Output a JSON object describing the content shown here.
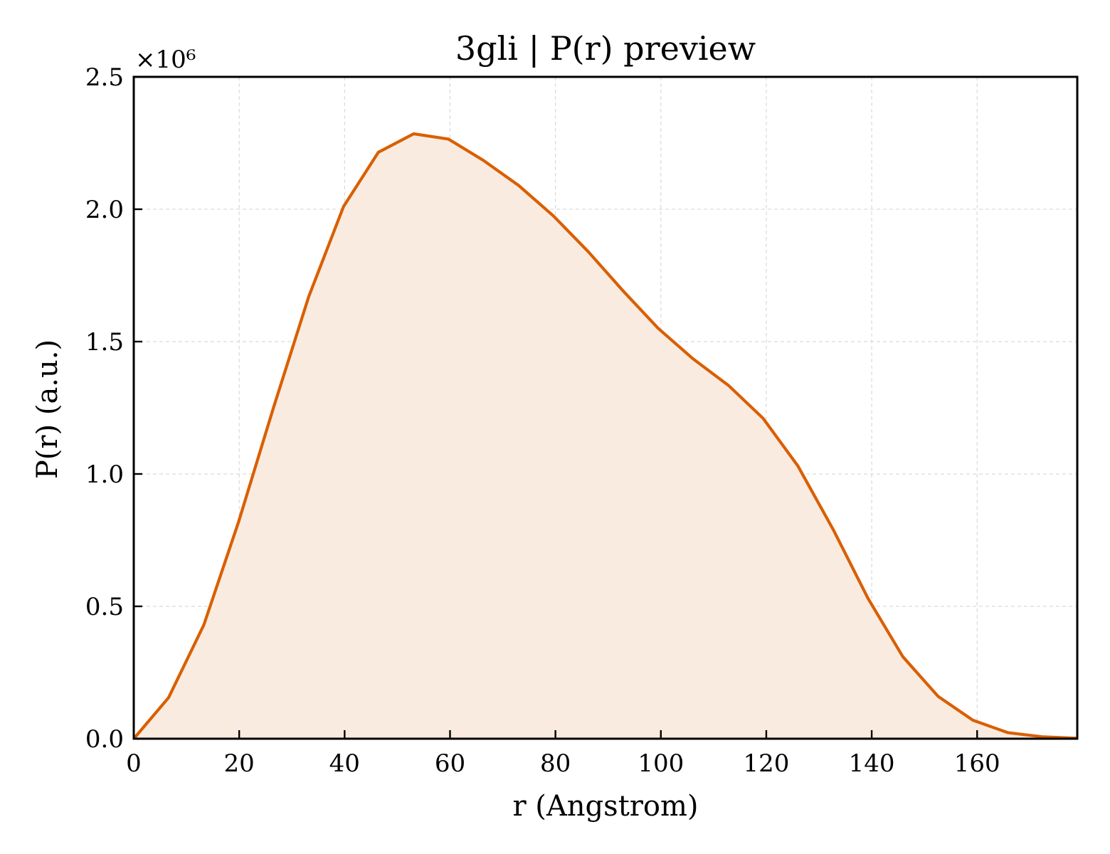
{
  "chart_data": {
    "type": "area",
    "title": "3gli | P(r) preview",
    "xlabel": "r (Angstrom)",
    "ylabel": "P(r) (a.u.)",
    "y_offset_label": "×10⁶",
    "y_scale": 1000000,
    "xlim": [
      0,
      179
    ],
    "ylim": [
      0,
      2.5
    ],
    "grid": true,
    "x_ticks": [
      0,
      20,
      40,
      60,
      80,
      100,
      120,
      140,
      160
    ],
    "x_tick_labels": [
      "0",
      "20",
      "40",
      "60",
      "80",
      "100",
      "120",
      "140",
      "160"
    ],
    "y_ticks": [
      0,
      0.5,
      1.0,
      1.5,
      2.0,
      2.5
    ],
    "y_tick_labels": [
      "0.0",
      "0.5",
      "1.0",
      "1.5",
      "2.0",
      "2.5"
    ],
    "line_color": "#d95f02",
    "fill_color": "#f9ebe0",
    "series": [
      {
        "x": [
          0,
          6.6,
          13.3,
          19.9,
          26.5,
          33.2,
          39.8,
          46.4,
          53.1,
          59.7,
          66.3,
          73.0,
          79.6,
          86.2,
          92.9,
          99.5,
          106.1,
          112.8,
          119.4,
          126.0,
          132.7,
          139.3,
          145.9,
          152.6,
          159.2,
          165.8,
          172.5,
          179.0
        ],
        "y": [
          0.0,
          0.155,
          0.43,
          0.82,
          1.25,
          1.67,
          2.01,
          2.215,
          2.285,
          2.265,
          2.185,
          2.09,
          1.975,
          1.84,
          1.69,
          1.55,
          1.435,
          1.335,
          1.21,
          1.03,
          0.79,
          0.53,
          0.31,
          0.16,
          0.07,
          0.023,
          0.007,
          0.002
        ]
      }
    ]
  }
}
